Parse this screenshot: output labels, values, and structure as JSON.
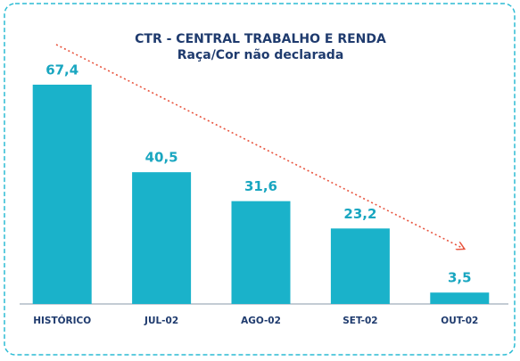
{
  "chart_data": {
    "type": "bar",
    "title": "CTR - CENTRAL TRABALHO E RENDA",
    "subtitle": "Raça/Cor não declarada",
    "categories": [
      "HISTÓRICO",
      "JUL-02",
      "AGO-02",
      "SET-02",
      "OUT-02"
    ],
    "values": [
      67.4,
      40.5,
      31.6,
      23.2,
      3.5
    ],
    "value_labels": [
      "67,4",
      "40,5",
      "31,6",
      "23,2",
      "3,5"
    ],
    "color": "#1ab2ca"
  }
}
